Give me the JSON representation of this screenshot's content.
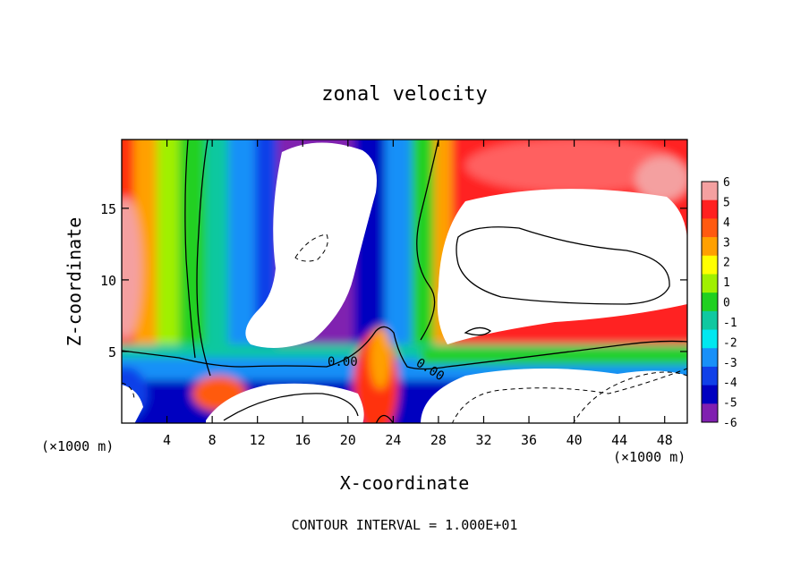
{
  "chart_data": {
    "type": "heatmap",
    "title": "zonal velocity",
    "xlabel": "X-coordinate",
    "ylabel": "Z-coordinate",
    "x_unit_left": "(×1000 m)",
    "x_unit_right": "(×1000 m)",
    "xlim": [
      0,
      50
    ],
    "ylim": [
      0,
      19.8
    ],
    "x_ticks": [
      4,
      8,
      12,
      16,
      20,
      24,
      28,
      32,
      36,
      40,
      44,
      48
    ],
    "y_ticks": [
      5,
      10,
      15
    ],
    "colorbar": {
      "levels": [
        6,
        5,
        4,
        3,
        2,
        1,
        0,
        -1,
        -2,
        -3,
        -4,
        -5,
        -6
      ],
      "colors": [
        "#f4a0a0",
        "#ff2020",
        "#ff5a10",
        "#ffa000",
        "#ffff00",
        "#a0f000",
        "#20d020",
        "#10c8a0",
        "#00e8f0",
        "#1890f8",
        "#1040e8",
        "#0000c0",
        "#8020b0"
      ]
    },
    "contour_labels": [
      {
        "text": "0.00",
        "x": 19.5,
        "y": 4.4
      },
      {
        "text": "0.00",
        "x": 27.5,
        "y": 4.5
      }
    ],
    "footer": "CONTOUR INTERVAL = 1.000E+01"
  }
}
